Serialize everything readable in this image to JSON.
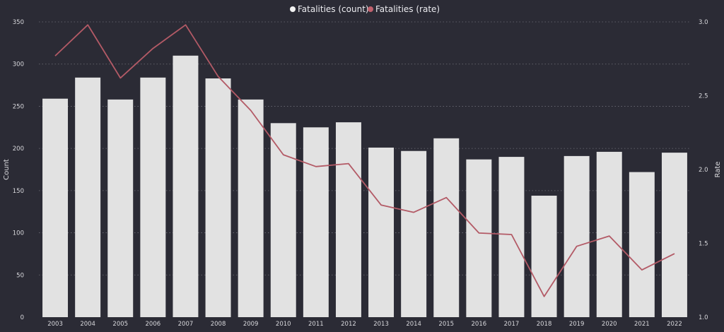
{
  "chart_data": {
    "type": "bar",
    "categories": [
      "2003",
      "2004",
      "2005",
      "2006",
      "2007",
      "2008",
      "2009",
      "2010",
      "2011",
      "2012",
      "2013",
      "2014",
      "2015",
      "2016",
      "2017",
      "2018",
      "2019",
      "2020",
      "2021",
      "2022"
    ],
    "series": [
      {
        "name": "Fatalities (count)",
        "type": "bar",
        "axis": "left",
        "values": [
          259,
          284,
          258,
          284,
          310,
          283,
          258,
          230,
          225,
          231,
          201,
          197,
          212,
          187,
          190,
          144,
          191,
          196,
          172,
          195
        ]
      },
      {
        "name": "Fatalities (rate)",
        "type": "line",
        "axis": "right",
        "values": [
          2.77,
          2.98,
          2.62,
          2.82,
          2.98,
          2.63,
          2.4,
          2.1,
          2.02,
          2.04,
          1.76,
          1.71,
          1.81,
          1.57,
          1.56,
          1.14,
          1.48,
          1.55,
          1.32,
          1.43
        ]
      }
    ],
    "ylabel": "Count",
    "ylabel_right": "Rate",
    "ylim": [
      0,
      350
    ],
    "yticks": [
      "0",
      "50",
      "100",
      "150",
      "200",
      "250",
      "300",
      "350"
    ],
    "ylim_right": [
      1.0,
      3.0
    ],
    "yticks_right": [
      "1.0",
      "1.5",
      "2.0",
      "2.5",
      "3.0"
    ],
    "grid": true,
    "legend_position": "top-center",
    "colors": {
      "background": "#2b2b35",
      "bar": "#e2e2e2",
      "line": "#b35a66",
      "count_legend_marker": "#f2f2f2",
      "rate_legend_marker": "#c0616d"
    }
  }
}
